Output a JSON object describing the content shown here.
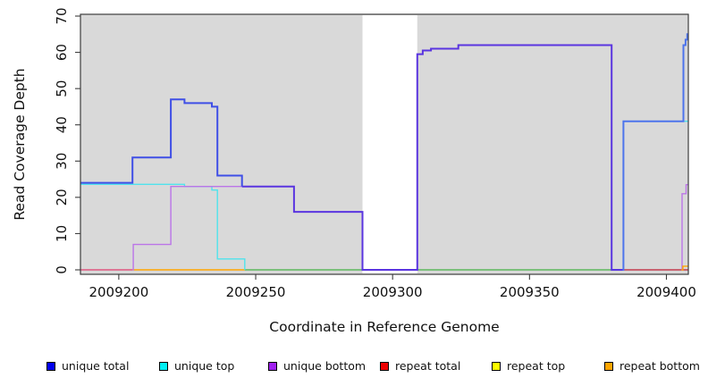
{
  "chart_data": {
    "type": "line",
    "title": "",
    "xlabel": "Coordinate in Reference Genome",
    "ylabel": "Read Coverage Depth",
    "xlim": [
      2009186,
      2009408
    ],
    "ylim": [
      0,
      70
    ],
    "x_ticks": [
      2009200,
      2009250,
      2009300,
      2009350,
      2009400
    ],
    "y_ticks": [
      0,
      10,
      20,
      30,
      40,
      50,
      60,
      70
    ],
    "plot_bg": "#d9d9d9",
    "gap_region": {
      "from": 2009289,
      "to": 2009309
    },
    "legend": [
      {
        "label": "unique total",
        "color": "#0000EE"
      },
      {
        "label": "unique top",
        "color": "#00F0F5"
      },
      {
        "label": "unique bottom",
        "color": "#A020F0"
      },
      {
        "label": "repeat total",
        "color": "#EE0000"
      },
      {
        "label": "repeat top",
        "color": "#FFFF00"
      },
      {
        "label": "repeat bottom",
        "color": "#FFA500"
      }
    ],
    "series": [
      {
        "name": "repeat-total-zero-left",
        "color": "#E0557F",
        "width": 1.4,
        "steps": [
          [
            2009186,
            0
          ]
        ],
        "xend": 2009205
      },
      {
        "name": "repeat-bottom-zero-left",
        "color": "#FFA500",
        "width": 1.4,
        "steps": [
          [
            2009205,
            0
          ]
        ],
        "xend": 2009246
      },
      {
        "name": "zero-line-mid",
        "color": "#5CB85C",
        "width": 1.4,
        "steps": [
          [
            2009246,
            0
          ]
        ],
        "xend": 2009380
      },
      {
        "name": "repeat-total-zero-right",
        "color": "#C23B4E",
        "width": 1.4,
        "steps": [
          [
            2009384,
            0
          ]
        ],
        "xend": 2009408
      },
      {
        "name": "unique-top",
        "color": "#4FE3EC",
        "width": 1.4,
        "steps": [
          [
            2009186,
            23.6
          ],
          [
            2009224,
            23
          ],
          [
            2009234,
            22
          ],
          [
            2009236,
            3
          ],
          [
            2009246,
            0
          ]
        ],
        "xend": 2009246
      },
      {
        "name": "unique-bottom-left",
        "color": "#BB75E8",
        "width": 1.4,
        "steps": [
          [
            2009205,
            0
          ],
          [
            2009205.3,
            7
          ],
          [
            2009219,
            23
          ]
        ],
        "xend": 2009245
      },
      {
        "name": "unique-total-mid",
        "color": "#5A35E0",
        "width": 2,
        "steps": [
          [
            2009245,
            23
          ],
          [
            2009264,
            16
          ],
          [
            2009289,
            0
          ],
          [
            2009309,
            59.5
          ],
          [
            2009311,
            60.5
          ],
          [
            2009314,
            61
          ],
          [
            2009324,
            62
          ],
          [
            2009380,
            0
          ]
        ],
        "xend": 2009384
      },
      {
        "name": "unique-total-left",
        "color": "#3F4FE6",
        "width": 2,
        "steps": [
          [
            2009186,
            24
          ],
          [
            2009205,
            31
          ],
          [
            2009219,
            47
          ],
          [
            2009224,
            46
          ],
          [
            2009234,
            45
          ],
          [
            2009236,
            26
          ],
          [
            2009245,
            23
          ]
        ],
        "xend": 2009245
      },
      {
        "name": "unique-top-right",
        "color": "#4FE3EC",
        "width": 1.4,
        "steps": [
          [
            2009406,
            41
          ]
        ],
        "xend": 2009408
      },
      {
        "name": "unique-bottom-right",
        "color": "#BB75E8",
        "width": 1.4,
        "steps": [
          [
            2009405.5,
            0
          ],
          [
            2009405.7,
            21
          ],
          [
            2009407.2,
            23.5
          ]
        ],
        "xend": 2009408
      },
      {
        "name": "repeat-bottom-zero-right",
        "color": "#FFA500",
        "width": 1.4,
        "steps": [
          [
            2009405.5,
            0
          ],
          [
            2009406,
            1
          ]
        ],
        "xend": 2009408
      },
      {
        "name": "unique-total-right",
        "color": "#4D74EC",
        "width": 2,
        "steps": [
          [
            2009384,
            0
          ],
          [
            2009384.3,
            41
          ],
          [
            2009406.2,
            62
          ],
          [
            2009407,
            63.5
          ],
          [
            2009407.6,
            65
          ]
        ],
        "xend": 2009408
      }
    ]
  }
}
